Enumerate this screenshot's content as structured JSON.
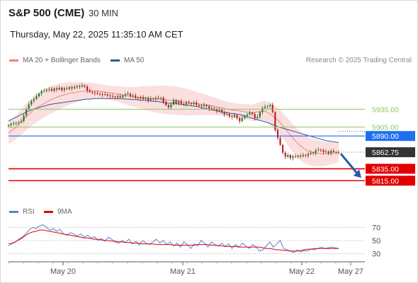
{
  "header": {
    "symbol": "S&P 500 (CME)",
    "interval": "30 MIN",
    "datetime": "Thursday, May 22, 2025 11:35:10 AM CET",
    "credit": "Research © 2025 Trading Central"
  },
  "legend": {
    "ma20": "MA 20 + Bollinger Bands",
    "ma50": "MA 50",
    "rsi": "RSI",
    "ma9": "9MA"
  },
  "colors": {
    "candle_up": "#1f7a1f",
    "candle_down": "#b81c1c",
    "ma20": "#f08080",
    "ma50": "#2e5a9e",
    "bands": "#f7c5c5",
    "resistance": "#8fc46a",
    "support": "#e00000",
    "pivot": "#1e6ff0",
    "last": "#333333",
    "rsi": "#5b7fd6",
    "rsi_ma": "#e00000",
    "arrow": "#2a5aa8"
  },
  "chart_data": [
    {
      "type": "candlestick",
      "title": "S&P 500 (CME)",
      "interval": "30 MIN",
      "x_ticks": [
        "May 20",
        "May 21",
        "May 22",
        "May 27"
      ],
      "ylim": [
        5800,
        5990
      ],
      "last_price": 5862.75,
      "levels": [
        {
          "label": "5935.00",
          "value": 5935.0,
          "kind": "resistance"
        },
        {
          "label": "5905.00",
          "value": 5905.0,
          "kind": "resistance"
        },
        {
          "label": "5890.00",
          "value": 5890.0,
          "kind": "pivot"
        },
        {
          "label": "5862.75",
          "value": 5862.75,
          "kind": "last"
        },
        {
          "label": "5835.00",
          "value": 5835.0,
          "kind": "support"
        },
        {
          "label": "5815.00",
          "value": 5815.0,
          "kind": "support"
        }
      ],
      "close": [
        5908,
        5910,
        5911,
        5912,
        5913,
        5915,
        5925,
        5935,
        5943,
        5949,
        5952,
        5957,
        5961,
        5965,
        5966,
        5968,
        5969,
        5966,
        5970,
        5968,
        5971,
        5967,
        5970,
        5969,
        5972,
        5970,
        5972,
        5974,
        5973,
        5975,
        5973,
        5966,
        5964,
        5963,
        5962,
        5961,
        5960,
        5959,
        5960,
        5958,
        5957,
        5956,
        5955,
        5957,
        5955,
        5958,
        5960,
        5961,
        5957,
        5958,
        5954,
        5953,
        5955,
        5952,
        5954,
        5950,
        5953,
        5952,
        5954,
        5953,
        5954,
        5947,
        5942,
        5938,
        5943,
        5950,
        5945,
        5948,
        5944,
        5943,
        5946,
        5945,
        5944,
        5946,
        5942,
        5941,
        5940,
        5942,
        5940,
        5936,
        5937,
        5935,
        5932,
        5934,
        5930,
        5926,
        5927,
        5923,
        5922,
        5925,
        5920,
        5915,
        5920,
        5924,
        5926,
        5929,
        5927,
        5920,
        5922,
        5930,
        5937,
        5939,
        5940,
        5942,
        5930,
        5900,
        5887,
        5875,
        5862,
        5855,
        5858,
        5853,
        5856,
        5855,
        5857,
        5856,
        5858,
        5857,
        5860,
        5862,
        5861,
        5866,
        5867,
        5866,
        5863,
        5864,
        5861,
        5865,
        5863,
        5863,
        5862.75
      ],
      "ma20": [
        5895,
        5900,
        5906,
        5913,
        5920,
        5927,
        5933,
        5938,
        5942,
        5946,
        5950,
        5953,
        5956,
        5958,
        5960,
        5962,
        5963,
        5964,
        5965,
        5966,
        5966,
        5966,
        5965,
        5964,
        5963,
        5962,
        5961,
        5960,
        5958,
        5957,
        5956,
        5955,
        5955,
        5954,
        5953,
        5952,
        5952,
        5951,
        5951,
        5950,
        5950,
        5949,
        5948,
        5947,
        5946,
        5945,
        5944,
        5943,
        5942,
        5941,
        5940,
        5938,
        5937,
        5935,
        5934,
        5933,
        5932,
        5931,
        5930,
        5929,
        5930,
        5931,
        5932,
        5929,
        5924,
        5918,
        5911,
        5903,
        5894,
        5886,
        5878,
        5872,
        5867,
        5864,
        5862,
        5861,
        5860,
        5860,
        5861,
        5861,
        5862
      ],
      "ma50": [
        5915,
        5919,
        5922,
        5926,
        5929,
        5932,
        5935,
        5937,
        5939,
        5941,
        5943,
        5944,
        5945,
        5946,
        5947,
        5948,
        5949,
        5950,
        5951,
        5952,
        5952,
        5953,
        5953,
        5953,
        5953,
        5953,
        5953,
        5953,
        5952,
        5952,
        5951,
        5951,
        5950,
        5950,
        5949,
        5948,
        5948,
        5947,
        5946,
        5945,
        5945,
        5944,
        5943,
        5942,
        5941,
        5940,
        5939,
        5937,
        5936,
        5934,
        5933,
        5931,
        5930,
        5929,
        5928,
        5927,
        5926,
        5924,
        5922,
        5920,
        5918,
        5916,
        5914,
        5912,
        5909,
        5906,
        5904,
        5902,
        5900,
        5898,
        5896,
        5894,
        5892,
        5890,
        5888,
        5886,
        5884,
        5882,
        5881,
        5880,
        5879
      ],
      "band_width": 18
    },
    {
      "type": "line",
      "title": "RSI",
      "ylim": [
        20,
        80
      ],
      "y_ticks": [
        70,
        50,
        30
      ],
      "series": [
        {
          "name": "RSI",
          "values": [
            42,
            45,
            48,
            52,
            55,
            60,
            66,
            70,
            68,
            72,
            74,
            70,
            66,
            68,
            64,
            67,
            60,
            58,
            62,
            60,
            57,
            60,
            55,
            58,
            54,
            56,
            50,
            53,
            49,
            55,
            52,
            48,
            46,
            50,
            47,
            52,
            45,
            49,
            43,
            50,
            46,
            44,
            48,
            52,
            46,
            50,
            44,
            48,
            42,
            46,
            40,
            48,
            44,
            38,
            45,
            42,
            50,
            46,
            40,
            48,
            44,
            42,
            46,
            41,
            45,
            38,
            44,
            40,
            46,
            42,
            38,
            44,
            40,
            34,
            36,
            42,
            48,
            40,
            45,
            50,
            38,
            36,
            34,
            32,
            36,
            33,
            35,
            34,
            37,
            36,
            38,
            40,
            38,
            39,
            40,
            39,
            38
          ]
        },
        {
          "name": "9MA",
          "values": [
            45,
            46,
            48,
            51,
            54,
            58,
            61,
            63,
            64,
            66,
            66,
            65,
            64,
            63,
            62,
            61,
            60,
            59,
            58,
            57,
            56,
            55,
            54,
            54,
            53,
            52,
            52,
            51,
            50,
            50,
            49,
            49,
            48,
            48,
            47,
            47,
            46,
            46,
            46,
            45,
            45,
            45,
            45,
            44,
            44,
            44,
            44,
            44,
            43,
            43,
            43,
            43,
            43,
            43,
            43,
            44,
            44,
            44,
            44,
            43,
            43,
            42,
            42,
            41,
            41,
            41,
            41,
            40,
            40,
            40,
            40,
            40,
            40,
            40,
            39,
            38,
            38,
            37,
            36,
            36,
            35,
            35,
            34,
            34,
            34,
            35,
            36,
            37,
            37,
            38,
            38,
            38,
            38,
            38,
            38,
            38,
            38
          ]
        }
      ]
    }
  ]
}
